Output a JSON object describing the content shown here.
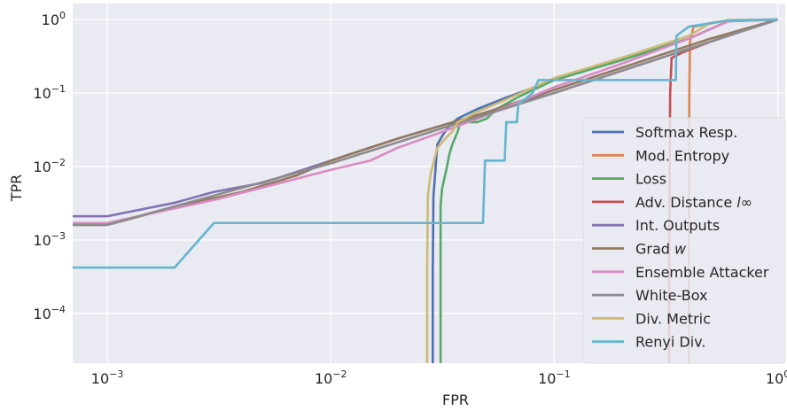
{
  "chart_data": {
    "type": "line",
    "xlabel": "FPR",
    "ylabel": "TPR",
    "xscale": "log",
    "yscale": "log",
    "xlim": [
      0.0007,
      1.08
    ],
    "ylim": [
      2.1e-05,
      1.65
    ],
    "grid": true,
    "background": "#eaeaf2",
    "legend_position": "lower-right",
    "x_ticks": [
      {
        "value": 0.001,
        "base": "10",
        "exp": "−3"
      },
      {
        "value": 0.01,
        "base": "10",
        "exp": "−2"
      },
      {
        "value": 0.1,
        "base": "10",
        "exp": "−1"
      },
      {
        "value": 1,
        "base": "10",
        "exp": "0"
      }
    ],
    "y_ticks": [
      {
        "value": 0.0001,
        "base": "10",
        "exp": "−4"
      },
      {
        "value": 0.001,
        "base": "10",
        "exp": "−3"
      },
      {
        "value": 0.01,
        "base": "10",
        "exp": "−2"
      },
      {
        "value": 0.1,
        "base": "10",
        "exp": "−1"
      },
      {
        "value": 1,
        "base": "10",
        "exp": "0"
      }
    ],
    "series": [
      {
        "name": "Softmax Resp.",
        "color": "#4c72b0",
        "points": [
          [
            0.0286,
            2e-05
          ],
          [
            0.0286,
            0.0004
          ],
          [
            0.0288,
            0.004
          ],
          [
            0.03,
            0.02
          ],
          [
            0.032,
            0.028
          ],
          [
            0.034,
            0.036
          ],
          [
            0.037,
            0.045
          ],
          [
            0.045,
            0.06
          ],
          [
            0.06,
            0.085
          ],
          [
            0.1,
            0.15
          ],
          [
            0.2,
            0.28
          ],
          [
            0.4,
            0.55
          ],
          [
            0.6,
            0.95
          ],
          [
            1.0,
            1.0
          ]
        ]
      },
      {
        "name": "Mod. Entropy",
        "color": "#dd8452",
        "points": [
          [
            0.4,
            2e-05
          ],
          [
            0.4,
            0.001
          ],
          [
            0.402,
            0.1
          ],
          [
            0.405,
            0.5
          ],
          [
            0.42,
            0.8
          ],
          [
            0.6,
            0.98
          ],
          [
            1.0,
            1.0
          ]
        ]
      },
      {
        "name": "Loss",
        "color": "#55a868",
        "points": [
          [
            0.031,
            2e-05
          ],
          [
            0.031,
            0.003
          ],
          [
            0.0315,
            0.005
          ],
          [
            0.033,
            0.0095
          ],
          [
            0.034,
            0.015
          ],
          [
            0.035,
            0.02
          ],
          [
            0.037,
            0.03
          ],
          [
            0.038,
            0.04
          ],
          [
            0.045,
            0.04
          ],
          [
            0.05,
            0.045
          ],
          [
            0.055,
            0.06
          ],
          [
            0.07,
            0.09
          ],
          [
            0.1,
            0.15
          ],
          [
            0.2,
            0.28
          ],
          [
            0.4,
            0.55
          ],
          [
            0.6,
            0.95
          ],
          [
            1.0,
            1.0
          ]
        ]
      },
      {
        "name": "Adv. Distance ",
        "name_suffix": "l∞",
        "color": "#c44e52",
        "points": [
          [
            0.327,
            2e-05
          ],
          [
            0.327,
            0.001
          ],
          [
            0.33,
            0.1
          ],
          [
            0.335,
            0.3
          ],
          [
            0.37,
            0.35
          ],
          [
            0.5,
            0.5
          ],
          [
            0.7,
            0.7
          ],
          [
            1.0,
            1.0
          ]
        ]
      },
      {
        "name": "Int. Outputs",
        "color": "#8172b3",
        "points": [
          [
            0.0007,
            0.0021
          ],
          [
            0.001,
            0.0021
          ],
          [
            0.002,
            0.0032
          ],
          [
            0.003,
            0.0045
          ],
          [
            0.005,
            0.006
          ],
          [
            0.01,
            0.012
          ],
          [
            0.02,
            0.024
          ],
          [
            0.05,
            0.055
          ],
          [
            0.1,
            0.1
          ],
          [
            0.2,
            0.2
          ],
          [
            0.5,
            0.5
          ],
          [
            1.0,
            1.0
          ]
        ]
      },
      {
        "name": "Grad ",
        "name_suffix": "w",
        "color": "#937860",
        "points": [
          [
            0.0007,
            0.0016
          ],
          [
            0.001,
            0.0016
          ],
          [
            0.002,
            0.0028
          ],
          [
            0.004,
            0.0045
          ],
          [
            0.007,
            0.0075
          ],
          [
            0.01,
            0.012
          ],
          [
            0.02,
            0.024
          ],
          [
            0.05,
            0.055
          ],
          [
            0.1,
            0.11
          ],
          [
            0.2,
            0.22
          ],
          [
            0.5,
            0.55
          ],
          [
            1.0,
            1.0
          ]
        ]
      },
      {
        "name": "Ensemble Attacker",
        "color": "#da8bc3",
        "points": [
          [
            0.0007,
            0.0017
          ],
          [
            0.001,
            0.0017
          ],
          [
            0.003,
            0.0035
          ],
          [
            0.006,
            0.006
          ],
          [
            0.01,
            0.009
          ],
          [
            0.015,
            0.012
          ],
          [
            0.02,
            0.018
          ],
          [
            0.03,
            0.028
          ],
          [
            0.05,
            0.05
          ],
          [
            0.1,
            0.12
          ],
          [
            0.2,
            0.25
          ],
          [
            0.4,
            0.55
          ],
          [
            0.6,
            0.95
          ],
          [
            1.0,
            1.0
          ]
        ]
      },
      {
        "name": "White-Box",
        "color": "#8c8c8c",
        "points": [
          [
            0.0007,
            0.0016
          ],
          [
            0.001,
            0.0016
          ],
          [
            0.01,
            0.011
          ],
          [
            0.1,
            0.1
          ],
          [
            1.0,
            1.0
          ]
        ]
      },
      {
        "name": "Div. Metric",
        "color": "#ccb974",
        "points": [
          [
            0.027,
            2e-05
          ],
          [
            0.027,
            0.0005
          ],
          [
            0.0272,
            0.004
          ],
          [
            0.028,
            0.008
          ],
          [
            0.03,
            0.018
          ],
          [
            0.033,
            0.025
          ],
          [
            0.035,
            0.03
          ],
          [
            0.037,
            0.04
          ],
          [
            0.045,
            0.055
          ],
          [
            0.06,
            0.08
          ],
          [
            0.1,
            0.16
          ],
          [
            0.2,
            0.3
          ],
          [
            0.4,
            0.6
          ],
          [
            0.5,
            0.9
          ],
          [
            0.6,
            0.98
          ],
          [
            1.0,
            1.0
          ]
        ]
      },
      {
        "name": "Renyi Div.",
        "color": "#64b5cd",
        "points": [
          [
            0.0007,
            0.00042
          ],
          [
            0.002,
            0.00042
          ],
          [
            0.003,
            0.0017
          ],
          [
            0.048,
            0.0017
          ],
          [
            0.049,
            0.012
          ],
          [
            0.06,
            0.012
          ],
          [
            0.061,
            0.04
          ],
          [
            0.068,
            0.04
          ],
          [
            0.069,
            0.07
          ],
          [
            0.08,
            0.1
          ],
          [
            0.085,
            0.15
          ],
          [
            0.35,
            0.15
          ],
          [
            0.352,
            0.6
          ],
          [
            0.4,
            0.8
          ],
          [
            0.6,
            0.97
          ],
          [
            1.0,
            1.0
          ]
        ]
      }
    ]
  }
}
